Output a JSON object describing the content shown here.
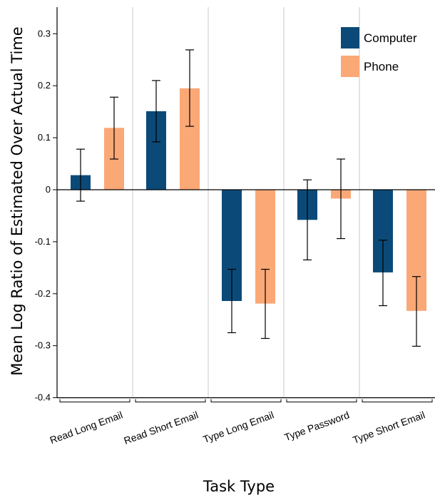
{
  "chart_data": {
    "type": "bar",
    "title": "",
    "xlabel": "Task Type",
    "ylabel": "Mean Log Ratio of Estimated Over Actual Time",
    "ylim": [
      -0.4,
      0.35
    ],
    "yticks": [
      -0.4,
      -0.3,
      -0.2,
      -0.1,
      0,
      0.1,
      0.2,
      0.3
    ],
    "ytick_labels": [
      "-0.4",
      "-0.3",
      "-0.2",
      "-0.1",
      "0",
      "0.1",
      "0.2",
      "0.3"
    ],
    "categories": [
      "Read Long Email",
      "Read Short Email",
      "Type Long Email",
      "Type Password",
      "Type Short Email"
    ],
    "series": [
      {
        "name": "Computer",
        "color": "#0b4a78",
        "values": [
          0.028,
          0.151,
          -0.214,
          -0.058,
          -0.159
        ],
        "err_low": [
          -0.022,
          0.092,
          -0.275,
          -0.135,
          -0.223
        ],
        "err_high": [
          0.078,
          0.21,
          -0.153,
          0.019,
          -0.097
        ]
      },
      {
        "name": "Phone",
        "color": "#fba877",
        "values": [
          0.119,
          0.195,
          -0.219,
          -0.017,
          -0.233
        ],
        "err_low": [
          0.059,
          0.122,
          -0.286,
          -0.094,
          -0.301
        ],
        "err_high": [
          0.178,
          0.269,
          -0.153,
          0.059,
          -0.167
        ]
      }
    ],
    "grid": "vertical separators between categories",
    "legend_position": "top-right"
  }
}
